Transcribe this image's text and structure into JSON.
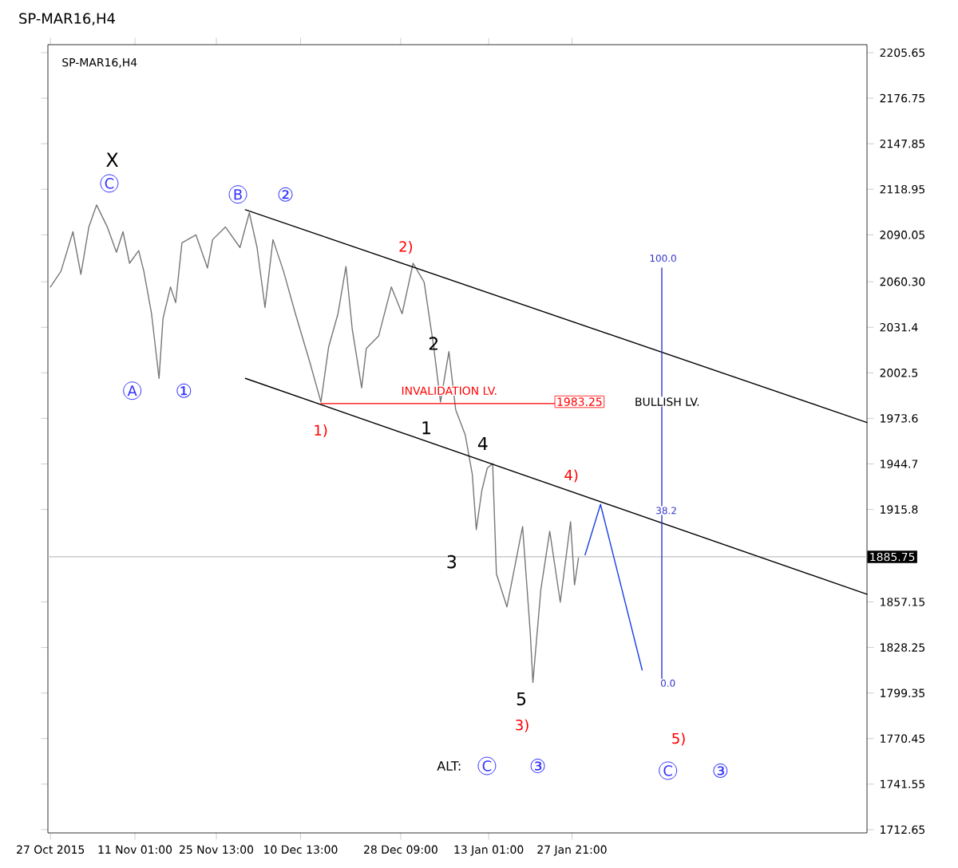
{
  "chart_data": {
    "type": "line",
    "title": "SP-MAR16,H4",
    "subtitle": "SP-MAR16,H4",
    "series": [
      {
        "color": "#777777",
        "x": [
          "2015-10-27T00:00",
          "2015-10-28T21:00",
          "2015-10-31T00:00",
          "2015-11-01T10:00",
          "2015-11-02T20:00",
          "2015-11-04T05:00",
          "2015-11-06T03:00",
          "2015-11-07T18:00",
          "2015-11-08T22:00",
          "2015-11-10T02:00",
          "2015-11-11T17:00",
          "2015-11-12T15:00",
          "2015-11-14T00:00",
          "2015-11-15T08:00",
          "2015-11-16T01:00",
          "2015-11-17T09:00",
          "2015-11-18T07:00",
          "2015-11-19T10:00",
          "2015-11-21T22:00",
          "2015-11-23T23:00",
          "2015-11-24T21:00",
          "2015-11-27T04:00",
          "2015-11-29T18:00",
          "2015-12-01T10:00",
          "2015-12-02T19:00",
          "2015-12-04T05:00",
          "2015-12-05T15:00",
          "2015-12-07T12:00",
          "2015-12-09T15:00",
          "2015-12-12T05:00",
          "2015-12-14T04:00",
          "2015-12-15T13:00",
          "2015-12-17T05:00",
          "2015-12-18T15:00",
          "2015-12-19T18:00",
          "2015-12-21T10:00",
          "2015-12-22T06:00",
          "2015-12-24T11:00",
          "2015-12-26T17:00",
          "2015-12-28T15:00",
          "2015-12-30T14:00",
          "2016-01-01T13:00",
          "2016-01-03T06:00",
          "2016-01-04T11:00",
          "2016-01-05T23:00",
          "2016-01-07T04:00",
          "2016-01-08T21:00",
          "2016-01-10T03:00",
          "2016-01-10T20:00",
          "2016-01-11T20:00",
          "2016-01-12T19:00",
          "2016-01-13T18:00",
          "2016-01-14T10:00",
          "2016-01-16T07:00",
          "2016-01-19T02:00",
          "2016-01-20T11:00",
          "2016-01-20T22:00",
          "2016-01-22T08:00",
          "2016-01-23T22:00",
          "2016-01-25T19:00",
          "2016-01-27T15:00",
          "2016-01-28T08:00",
          "2016-01-29T01:00"
        ],
        "values": [
          2057,
          2067,
          2092,
          2065,
          2095,
          2109,
          2095,
          2079,
          2092,
          2072,
          2080,
          2067,
          2040,
          1999,
          2037,
          2057,
          2047,
          2085,
          2090,
          2069,
          2087,
          2095,
          2082,
          2104,
          2082,
          2044,
          2087,
          2067,
          2040,
          2009,
          1984,
          2019,
          2040,
          2070,
          2030,
          1993,
          2018,
          2026,
          2057,
          2040,
          2072,
          2060,
          2019,
          1984,
          2016,
          1979,
          1963,
          1938,
          1903,
          1928,
          1942,
          1945,
          1875,
          1854,
          1905,
          1837,
          1806,
          1865,
          1902,
          1857,
          1908,
          1868,
          1885
        ]
      },
      {
        "color": "#1a3fe0",
        "x": [
          "2016-01-30T05:00",
          "2016-02-01T23:00",
          "2016-02-09T09:00"
        ],
        "values": [
          1887,
          1919,
          1814
        ]
      },
      {
        "color": "#000000",
        "x": [
          "2015-11-30T17:00",
          "2016-03-20T10:00"
        ],
        "values": [
          2106,
          1971
        ]
      },
      {
        "color": "#000000",
        "x": [
          "2015-11-30T17:00",
          "2016-03-20T10:00"
        ],
        "values": [
          1999,
          1862
        ]
      },
      {
        "color": "#ff0000",
        "x": [
          "2015-12-14T04:00",
          "2016-01-25T19:00"
        ],
        "values": [
          1983,
          1983
        ]
      },
      {
        "color": "#3333cc",
        "x": [
          "2016-02-12T21:00",
          "2016-02-12T21:00"
        ],
        "values": [
          1804,
          2069
        ]
      }
    ],
    "ref_lines": [
      {
        "axis": "y",
        "value": 1885.75,
        "label": "1885.75",
        "color": "#c0c0c0"
      }
    ],
    "annotations": [
      "X",
      "C",
      "A",
      "①",
      "B",
      "②",
      "2)",
      "1)",
      "2",
      "1",
      "4",
      "3",
      "4)",
      "5",
      "3)",
      "ALT:",
      "C",
      "③",
      "5)",
      "C",
      "③",
      "100.0",
      "38.2",
      "0.0",
      "INVALIDATION LV.",
      "1983.25",
      "BULLISH LV."
    ],
    "xlim": [
      "2015-10-26T13:00",
      "2016-03-20T10:00"
    ],
    "ylim": [
      1710.6,
      2210.7
    ],
    "xticks": [
      {
        "value": "2015-10-27",
        "label": "27 Oct 2015"
      },
      {
        "value": "2015-11-11T01:00",
        "label": "11 Nov 01:00"
      },
      {
        "value": "2015-11-25T13:00",
        "label": "25 Nov 13:00"
      },
      {
        "value": "2015-12-10T13:00",
        "label": "10 Dec 13:00"
      },
      {
        "value": "2015-12-28T09:00",
        "label": "28 Dec 09:00"
      },
      {
        "value": "2016-01-13T01:00",
        "label": "13 Jan 01:00"
      },
      {
        "value": "2016-01-27T21:00",
        "label": "27 Jan 21:00"
      }
    ],
    "yticks": [
      2205.65,
      2176.75,
      2147.85,
      2118.95,
      2090.05,
      {
        "value": 2060.3,
        "label": "2060.30"
      },
      2031.4,
      2002.5,
      1973.6,
      1944.7,
      1915.8,
      1857.15,
      1828.25,
      1799.35,
      1770.45,
      1741.55,
      1712.65
    ]
  }
}
